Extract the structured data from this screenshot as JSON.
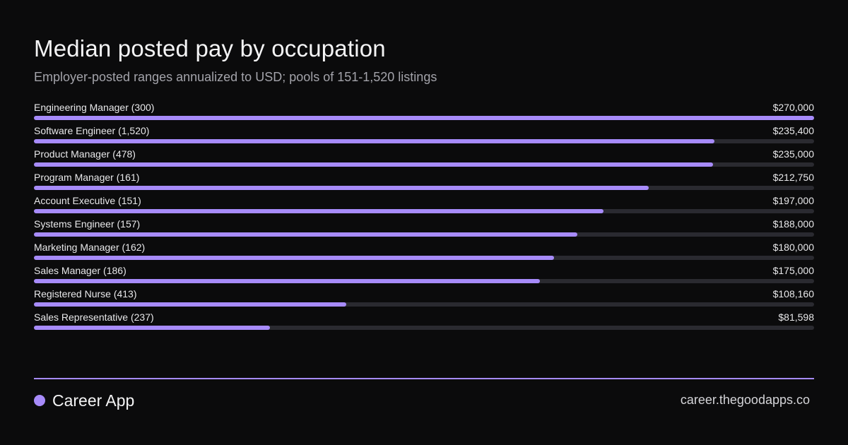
{
  "chart_data": {
    "type": "bar",
    "orientation": "horizontal",
    "title": "Median posted pay by occupation",
    "subtitle": "Employer-posted ranges annualized to USD; pools of 151-1,520 listings",
    "categories": [
      "Engineering Manager (300)",
      "Software Engineer (1,520)",
      "Product Manager (478)",
      "Program Manager (161)",
      "Account Executive (151)",
      "Systems Engineer (157)",
      "Marketing Manager (162)",
      "Sales Manager (186)",
      "Registered Nurse (413)",
      "Sales Representative (237)"
    ],
    "values": [
      270000,
      235400,
      235000,
      212750,
      197000,
      188000,
      180000,
      175000,
      108160,
      81598
    ],
    "value_labels": [
      "$270,000",
      "$235,400",
      "$235,000",
      "$212,750",
      "$197,000",
      "$188,000",
      "$180,000",
      "$175,000",
      "$108,160",
      "$81,598"
    ],
    "xlim": [
      0,
      270000
    ],
    "grid": false,
    "legend": "none"
  },
  "footer": {
    "brand": "Career App",
    "url": "career.thegoodapps.co"
  },
  "colors": {
    "background": "#0b0b0c",
    "accent": "#a78bfa",
    "track": "#2a2a30"
  }
}
